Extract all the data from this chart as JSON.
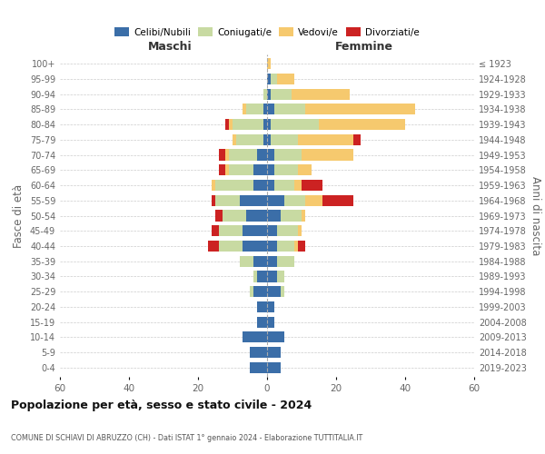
{
  "age_groups": [
    "0-4",
    "5-9",
    "10-14",
    "15-19",
    "20-24",
    "25-29",
    "30-34",
    "35-39",
    "40-44",
    "45-49",
    "50-54",
    "55-59",
    "60-64",
    "65-69",
    "70-74",
    "75-79",
    "80-84",
    "85-89",
    "90-94",
    "95-99",
    "100+"
  ],
  "birth_years": [
    "2019-2023",
    "2014-2018",
    "2009-2013",
    "2004-2008",
    "1999-2003",
    "1994-1998",
    "1989-1993",
    "1984-1988",
    "1979-1983",
    "1974-1978",
    "1969-1973",
    "1964-1968",
    "1959-1963",
    "1954-1958",
    "1949-1953",
    "1944-1948",
    "1939-1943",
    "1934-1938",
    "1929-1933",
    "1924-1928",
    "≤ 1923"
  ],
  "colors": {
    "celibi": "#3b6ea8",
    "coniugati": "#c8daa2",
    "vedovi": "#f6c96e",
    "divorziati": "#cc2222"
  },
  "males": {
    "celibi": [
      5,
      5,
      7,
      3,
      3,
      4,
      3,
      4,
      7,
      7,
      6,
      8,
      4,
      4,
      3,
      1,
      1,
      1,
      0,
      0,
      0
    ],
    "coniugati": [
      0,
      0,
      0,
      0,
      0,
      1,
      1,
      4,
      7,
      7,
      7,
      7,
      11,
      7,
      8,
      8,
      9,
      5,
      1,
      0,
      0
    ],
    "vedovi": [
      0,
      0,
      0,
      0,
      0,
      0,
      0,
      0,
      0,
      0,
      0,
      0,
      1,
      1,
      1,
      1,
      1,
      1,
      0,
      0,
      0
    ],
    "divorziati": [
      0,
      0,
      0,
      0,
      0,
      0,
      0,
      0,
      3,
      2,
      2,
      1,
      0,
      2,
      2,
      0,
      1,
      0,
      0,
      0,
      0
    ]
  },
  "females": {
    "celibi": [
      4,
      4,
      5,
      2,
      2,
      4,
      3,
      3,
      3,
      3,
      4,
      5,
      2,
      2,
      2,
      1,
      1,
      2,
      1,
      1,
      0
    ],
    "coniugati": [
      0,
      0,
      0,
      0,
      0,
      1,
      2,
      5,
      5,
      6,
      6,
      6,
      6,
      7,
      8,
      8,
      14,
      9,
      6,
      2,
      0
    ],
    "vedovi": [
      0,
      0,
      0,
      0,
      0,
      0,
      0,
      0,
      1,
      1,
      1,
      5,
      2,
      4,
      15,
      16,
      25,
      32,
      17,
      5,
      1
    ],
    "divorziati": [
      0,
      0,
      0,
      0,
      0,
      0,
      0,
      0,
      2,
      0,
      0,
      9,
      6,
      0,
      0,
      2,
      0,
      0,
      0,
      0,
      0
    ]
  },
  "xlim": 60,
  "title_main": "Popolazione per età, sesso e stato civile - 2024",
  "title_sub": "COMUNE DI SCHIAVI DI ABRUZZO (CH) - Dati ISTAT 1° gennaio 2024 - Elaborazione TUTTITALIA.IT",
  "legend_labels": [
    "Celibi/Nubili",
    "Coniugati/e",
    "Vedovi/e",
    "Divorziati/e"
  ],
  "ylabel_left": "Fasce di età",
  "ylabel_right": "Anni di nascita",
  "label_maschi": "Maschi",
  "label_femmine": "Femmine",
  "background_color": "#ffffff",
  "grid_color": "#cccccc"
}
